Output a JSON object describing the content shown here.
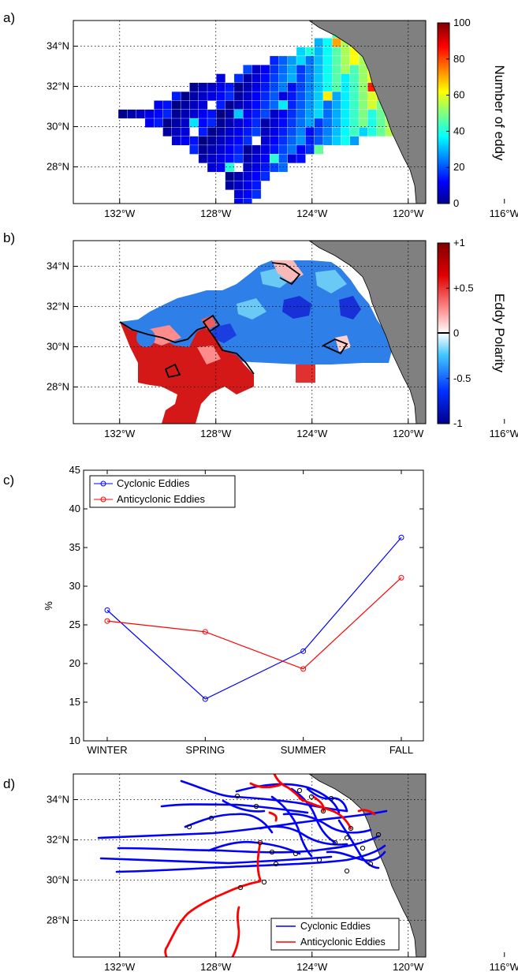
{
  "chart_data": [
    {
      "panel": "a)",
      "type": "heatmap",
      "x_ticks": [
        "132°W",
        "128°W",
        "124°W",
        "120°W",
        "116°W"
      ],
      "y_ticks": [
        "28°N",
        "30°N",
        "32°N",
        "34°N"
      ],
      "colorbar": {
        "label": "Number of eddy",
        "ticks": [
          "0",
          "20",
          "40",
          "60",
          "80",
          "100"
        ],
        "range": [
          0,
          100
        ]
      },
      "grid": "dotted",
      "land_color": "#808080"
    },
    {
      "panel": "b)",
      "type": "heatmap",
      "x_ticks": [
        "132°W",
        "128°W",
        "124°W",
        "120°W",
        "116°W"
      ],
      "y_ticks": [
        "28°N",
        "30°N",
        "32°N",
        "34°N"
      ],
      "colorbar": {
        "label": "Eddy Polarity",
        "ticks": [
          "+1",
          "+0.5",
          "0",
          "-0.5",
          "-1"
        ],
        "range": [
          -1,
          1
        ]
      },
      "grid": "dotted",
      "land_color": "#808080"
    },
    {
      "panel": "c)",
      "type": "line",
      "categories": [
        "WINTER",
        "SPRING",
        "SUMMER",
        "FALL"
      ],
      "ylabel": "%",
      "ylim": [
        10,
        45
      ],
      "y_ticks": [
        "10",
        "15",
        "20",
        "25",
        "30",
        "35",
        "40",
        "45"
      ],
      "legend_position": "top-left",
      "series": [
        {
          "name": "Cyclonic Eddies",
          "color": "#0000ff",
          "values": [
            26.9,
            15.4,
            21.6,
            36.3
          ]
        },
        {
          "name": "Anticyclonic Eddies",
          "color": "#ff0000",
          "values": [
            25.5,
            24.1,
            19.3,
            31.1
          ]
        }
      ]
    },
    {
      "panel": "d)",
      "type": "line",
      "x_ticks": [
        "132°W",
        "128°W",
        "124°W",
        "120°W",
        "116°W"
      ],
      "y_ticks": [
        "28°N",
        "30°N",
        "32°N",
        "34°N"
      ],
      "legend_position": "bottom-right",
      "series": [
        {
          "name": "Cyclonic Eddies",
          "color": "#0000ff"
        },
        {
          "name": "Anticyclonic Eddies",
          "color": "#ff0000"
        }
      ],
      "land_color": "#808080"
    }
  ]
}
